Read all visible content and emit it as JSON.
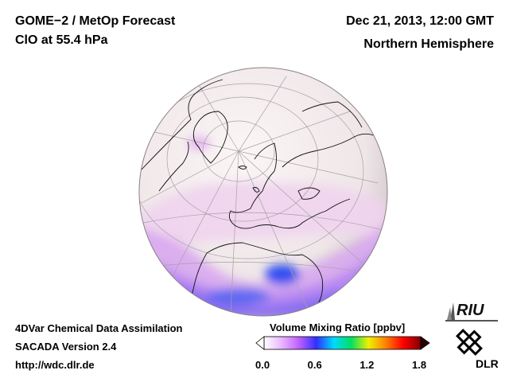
{
  "header": {
    "title": "GOME−2 / MetOp Forecast",
    "species": "ClO at 55.4 hPa",
    "datetime": "Dec 21, 2013, 12:00 GMT",
    "region": "Northern Hemisphere"
  },
  "footer": {
    "method": "4DVar Chemical Data Assimilation",
    "version": "SACADA Version 2.4",
    "url": "http://wdc.dlr.de"
  },
  "colorbar": {
    "title": "Volume Mixing Ratio [ppbv]",
    "ticks": [
      "0.0",
      "0.6",
      "1.2",
      "1.8"
    ],
    "min": 0.0,
    "max": 1.8,
    "colors": [
      "#ffffff",
      "#e8b8ff",
      "#c060ff",
      "#3030ff",
      "#00d8ff",
      "#00e060",
      "#f0f000",
      "#ff8000",
      "#ff0000",
      "#800000"
    ]
  },
  "logos": {
    "riu": "RIU",
    "dlr": "DLR"
  }
}
